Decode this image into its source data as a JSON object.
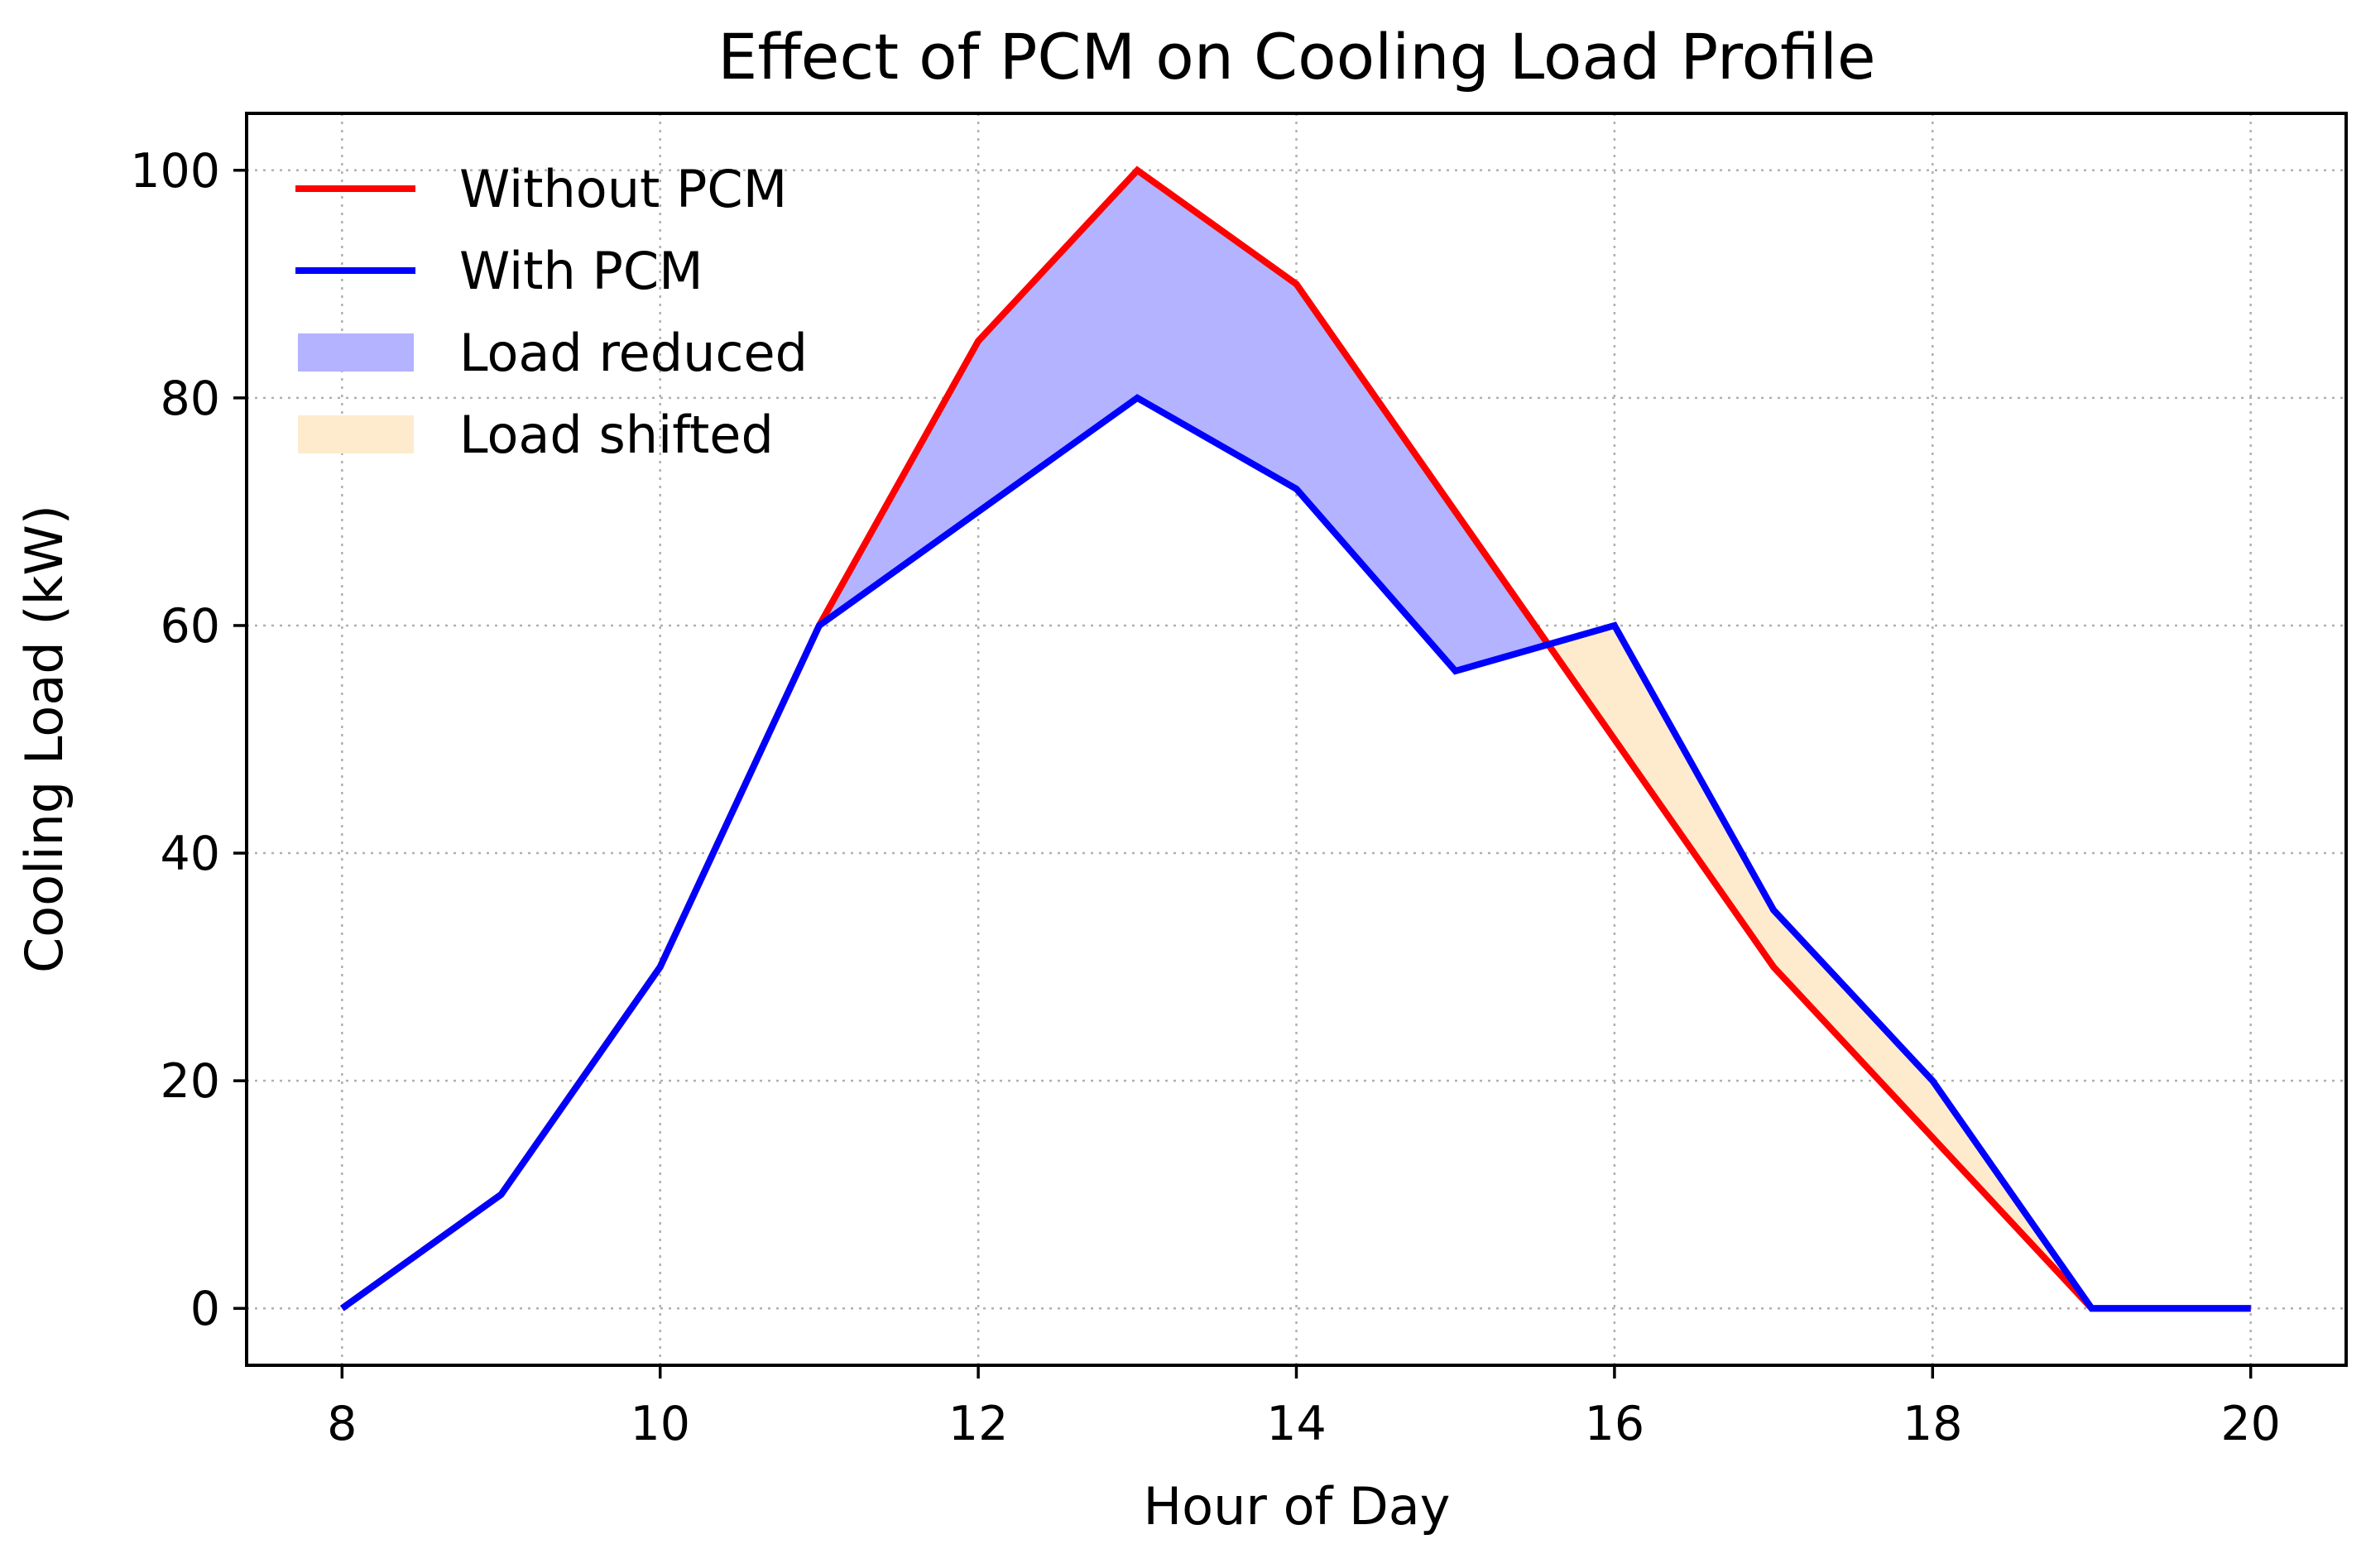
{
  "chart_data": {
    "type": "line",
    "title": "Effect of PCM on Cooling Load Profile",
    "xlabel": "Hour of Day",
    "ylabel": "Cooling Load (kW)",
    "xlim": [
      7.4,
      20.6
    ],
    "ylim": [
      -5,
      105
    ],
    "x_ticks": [
      8,
      10,
      12,
      14,
      16,
      18,
      20
    ],
    "y_ticks": [
      0,
      20,
      40,
      60,
      80,
      100
    ],
    "grid": true,
    "legend_position": "top-left",
    "x": [
      8,
      9,
      10,
      11,
      12,
      13,
      14,
      15,
      16,
      17,
      18,
      19,
      20
    ],
    "series": [
      {
        "name": "Without PCM",
        "color": "#ff0000",
        "values": [
          0,
          10,
          30,
          60,
          85,
          100,
          90,
          70,
          50,
          30,
          15,
          0,
          0
        ]
      },
      {
        "name": "With PCM",
        "color": "#0000ff",
        "values": [
          0,
          10,
          30,
          60,
          70,
          80,
          72,
          56,
          60,
          35,
          20,
          0,
          0
        ]
      }
    ],
    "fills": [
      {
        "name": "Load reduced",
        "color": "#b3b3ff",
        "where": "Without PCM > With PCM"
      },
      {
        "name": "Load shifted",
        "color": "#feebcd",
        "where": "With PCM > Without PCM"
      }
    ],
    "legend": [
      "Without PCM",
      "With PCM",
      "Load reduced",
      "Load shifted"
    ]
  }
}
